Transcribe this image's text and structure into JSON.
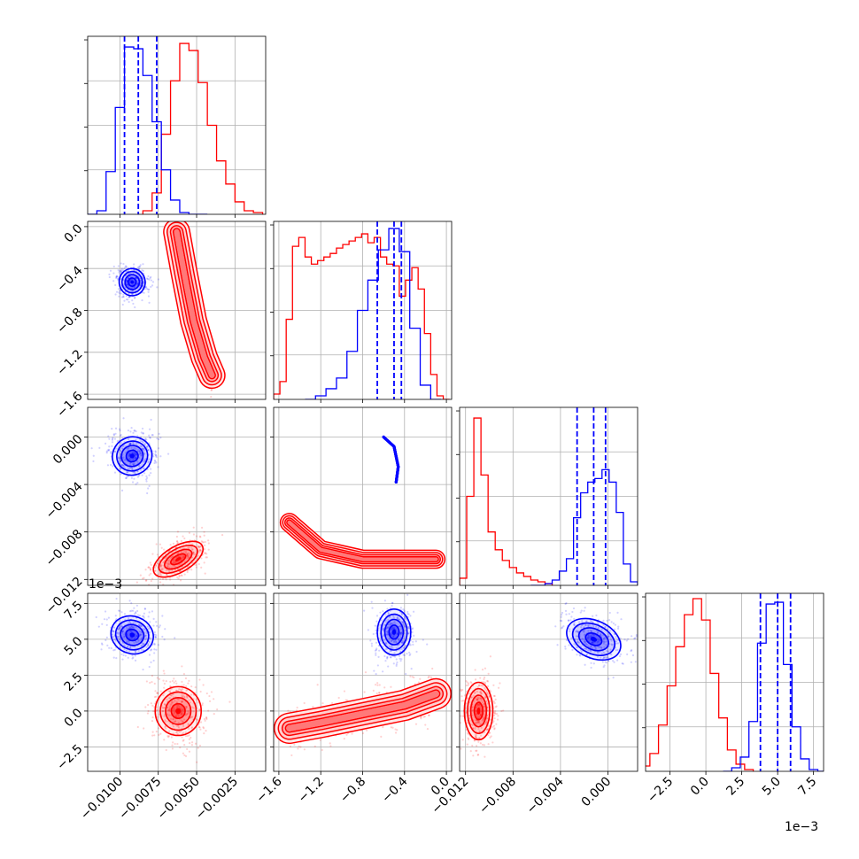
{
  "chart_data": {
    "type": "corner",
    "grid": true,
    "colors": {
      "series_a": "#0000ff",
      "series_b": "#ff0000"
    },
    "series": [
      {
        "color": "blue"
      },
      {
        "color": "red"
      }
    ],
    "parameters": [
      {
        "range": [
          -0.0121,
          -0.0005
        ],
        "ticks": [
          -0.01,
          -0.0075,
          -0.005,
          -0.0025
        ],
        "tick_labels": [
          "−0.0100",
          "−0.0075",
          "−0.0050",
          "−0.0025"
        ],
        "offset": ""
      },
      {
        "range": [
          -1.65,
          0.05
        ],
        "ticks": [
          -1.6,
          -1.2,
          -0.8,
          -0.4,
          0.0
        ],
        "tick_labels": [
          "−1.6",
          "−1.2",
          "−0.8",
          "−0.4",
          "0.0"
        ],
        "offset": ""
      },
      {
        "range": [
          -0.0125,
          0.0025
        ],
        "ticks": [
          -0.012,
          -0.008,
          -0.004,
          0.0
        ],
        "tick_labels": [
          "−0.012",
          "−0.008",
          "−0.004",
          "0.000"
        ],
        "offset": ""
      },
      {
        "range": [
          -4.2,
          8.2
        ],
        "ticks": [
          -2.5,
          0.0,
          2.5,
          5.0,
          7.5
        ],
        "tick_labels": [
          "−2.5",
          "0.0",
          "2.5",
          "5.0",
          "7.5"
        ],
        "offset": "1e−3"
      }
    ],
    "histograms": [
      {
        "blue": {
          "edges": [
            -0.0121,
            -0.0115,
            -0.0109,
            -0.0103,
            -0.0097,
            -0.0091,
            -0.0085,
            -0.0079,
            -0.0073,
            -0.0067,
            -0.0061,
            -0.0055,
            -0.0049,
            -0.0043
          ],
          "counts": [
            0,
            0.02,
            0.24,
            0.6,
            0.94,
            0.93,
            0.78,
            0.52,
            0.25,
            0.08,
            0.01,
            0,
            0
          ]
        },
        "red": {
          "edges": [
            -0.0085,
            -0.0079,
            -0.0073,
            -0.0067,
            -0.0061,
            -0.0055,
            -0.0049,
            -0.0043,
            -0.0037,
            -0.0031,
            -0.0025,
            -0.0019,
            -0.0013,
            -0.0007
          ],
          "counts": [
            0.02,
            0.12,
            0.45,
            0.75,
            0.96,
            0.92,
            0.74,
            0.5,
            0.3,
            0.17,
            0.07,
            0.02,
            0.01
          ]
        },
        "quantiles": [
          -0.0097,
          -0.0088,
          -0.0076
        ]
      },
      {
        "blue": {
          "edges": [
            -1.35,
            -1.25,
            -1.15,
            -1.05,
            -0.95,
            -0.85,
            -0.75,
            -0.65,
            -0.55,
            -0.45,
            -0.35,
            -0.25,
            -0.15,
            -0.05
          ],
          "counts": [
            0,
            0.02,
            0.06,
            0.12,
            0.27,
            0.5,
            0.67,
            0.84,
            0.96,
            0.83,
            0.4,
            0.08,
            0
          ]
        },
        "red": {
          "edges": [
            -1.65,
            -1.59,
            -1.53,
            -1.47,
            -1.41,
            -1.35,
            -1.29,
            -1.23,
            -1.17,
            -1.11,
            -1.05,
            -0.99,
            -0.93,
            -0.87,
            -0.81,
            -0.75,
            -0.69,
            -0.63,
            -0.57,
            -0.51,
            -0.45,
            -0.39,
            -0.33,
            -0.27,
            -0.21,
            -0.15,
            -0.09,
            -0.03,
            0.03
          ],
          "counts": [
            0.03,
            0.1,
            0.45,
            0.86,
            0.91,
            0.8,
            0.76,
            0.78,
            0.8,
            0.82,
            0.85,
            0.87,
            0.89,
            0.91,
            0.93,
            0.88,
            0.91,
            0.8,
            0.76,
            0.75,
            0.58,
            0.67,
            0.74,
            0.62,
            0.37,
            0.14,
            0.02,
            0
          ]
        },
        "quantiles": [
          -0.66,
          -0.5,
          -0.43
        ]
      },
      {
        "blue": {
          "edges": [
            -0.0065,
            -0.0059,
            -0.0053,
            -0.0047,
            -0.0041,
            -0.0035,
            -0.0029,
            -0.0023,
            -0.0017,
            -0.0011,
            -0.0005,
            0.0001,
            0.0007,
            0.0013,
            0.0019,
            0.0025
          ],
          "counts": [
            0,
            0,
            0.01,
            0.03,
            0.08,
            0.15,
            0.38,
            0.52,
            0.58,
            0.6,
            0.65,
            0.58,
            0.41,
            0.12,
            0.02
          ]
        },
        "red": {
          "edges": [
            -0.0125,
            -0.0119,
            -0.0113,
            -0.0107,
            -0.0101,
            -0.0095,
            -0.0089,
            -0.0083,
            -0.0077,
            -0.0071,
            -0.0065,
            -0.0059,
            -0.0053,
            -0.0047
          ],
          "counts": [
            0.04,
            0.5,
            0.94,
            0.62,
            0.3,
            0.2,
            0.14,
            0.1,
            0.07,
            0.05,
            0.03,
            0.02,
            0.01
          ]
        },
        "quantiles": [
          -0.0026,
          -0.0012,
          -0.0002
        ]
      },
      {
        "blue": {
          "edges": [
            1.2,
            1.8,
            2.4,
            3.0,
            3.6,
            4.2,
            4.8,
            5.4,
            6.0,
            6.6,
            7.2,
            7.8,
            8.4
          ],
          "counts": [
            0,
            0.02,
            0.08,
            0.28,
            0.72,
            0.94,
            0.95,
            0.6,
            0.25,
            0.07,
            0.01,
            0
          ]
        },
        "red": {
          "edges": [
            -4.5,
            -3.9,
            -3.3,
            -2.7,
            -2.1,
            -1.5,
            -0.9,
            -0.3,
            0.3,
            0.9,
            1.5,
            2.1,
            2.7,
            3.3
          ],
          "counts": [
            0.03,
            0.1,
            0.26,
            0.48,
            0.7,
            0.88,
            0.97,
            0.85,
            0.55,
            0.3,
            0.12,
            0.04,
            0.01
          ]
        },
        "quantiles": [
          3.8,
          5.0,
          5.9
        ]
      }
    ],
    "pairs": [
      {
        "row": 1,
        "col": 0,
        "blue": {
          "cx": -0.0092,
          "cy": -0.53,
          "rx": 0.00085,
          "ry": 0.13,
          "angle": 5
        },
        "red": {
          "path": [
            [
              -0.0063,
              -0.05
            ],
            [
              -0.0058,
              -0.45
            ],
            [
              -0.0052,
              -0.9
            ],
            [
              -0.0045,
              -1.25
            ],
            [
              -0.004,
              -1.42
            ]
          ],
          "width": 0.0016
        }
      },
      {
        "row": 2,
        "col": 0,
        "blue": {
          "cx": -0.0092,
          "cy": -0.0016,
          "rx": 0.0013,
          "ry": 0.0016,
          "angle": 25
        },
        "red": {
          "cx": -0.0062,
          "cy": -0.0103,
          "rx": 0.0018,
          "ry": 0.0011,
          "angle": 30
        }
      },
      {
        "row": 3,
        "col": 0,
        "blue": {
          "cx": -0.0092,
          "cy": 5.3,
          "rx": 0.0014,
          "ry": 1.3,
          "angle": -20
        },
        "red": {
          "cx": -0.0062,
          "cy": 0.0,
          "rx": 0.0015,
          "ry": 1.7,
          "angle": 0
        }
      },
      {
        "row": 2,
        "col": 1,
        "blue": {
          "path": [
            [
              -0.6,
              0.0
            ],
            [
              -0.5,
              -0.0008
            ],
            [
              -0.46,
              -0.0025
            ],
            [
              -0.48,
              -0.0038
            ]
          ],
          "width": 0.0018
        },
        "red": {
          "path": [
            [
              -1.5,
              -0.0072
            ],
            [
              -1.2,
              -0.0095
            ],
            [
              -0.8,
              -0.0103
            ],
            [
              -0.4,
              -0.0103
            ],
            [
              -0.1,
              -0.0103
            ]
          ],
          "width": 0.0014
        }
      },
      {
        "row": 3,
        "col": 1,
        "blue": {
          "cx": -0.5,
          "cy": 5.5,
          "rx": 0.16,
          "ry": 1.6,
          "angle": 0
        },
        "red": {
          "path": [
            [
              -1.5,
              -1.2
            ],
            [
              -1.2,
              -0.8
            ],
            [
              -0.8,
              -0.2
            ],
            [
              -0.4,
              0.4
            ],
            [
              -0.1,
              1.2
            ]
          ],
          "width": 2.0
        }
      },
      {
        "row": 3,
        "col": 2,
        "blue": {
          "cx": -0.0012,
          "cy": 5.0,
          "rx": 0.0024,
          "ry": 1.3,
          "angle": -25
        },
        "red": {
          "cx": -0.0109,
          "cy": 0.0,
          "rx": 0.0012,
          "ry": 2.0,
          "angle": 0
        }
      }
    ]
  }
}
